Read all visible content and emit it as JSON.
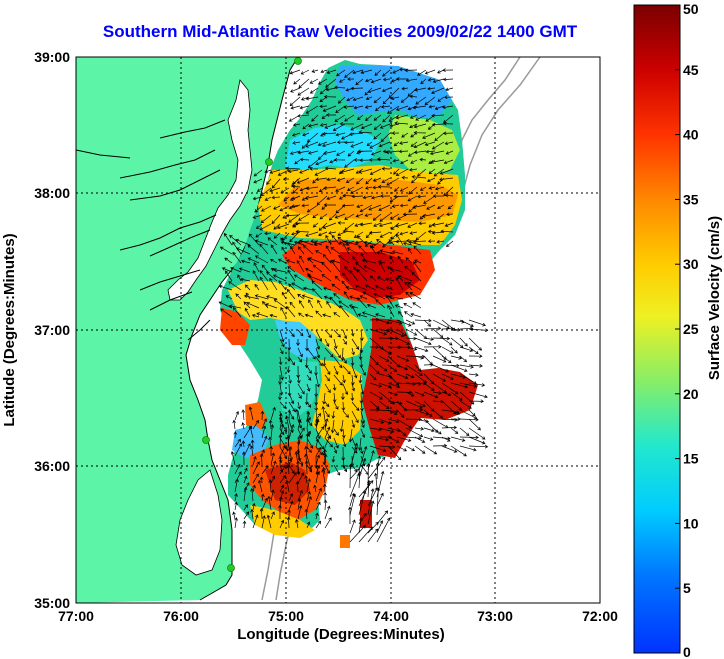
{
  "title": "Southern Mid-Atlantic Raw Velocities 2009/02/22 1400 GMT",
  "xlabel": "Longitude (Degrees:Minutes)",
  "ylabel": "Latitude (Degrees:Minutes)",
  "x_ticks": [
    "77:00",
    "76:00",
    "75:00",
    "74:00",
    "73:00",
    "72:00"
  ],
  "y_ticks": [
    "39:00",
    "38:00",
    "37:00",
    "36:00",
    "35:00"
  ],
  "colorbar": {
    "label": "Surface Velocity (cm/s)",
    "ticks": [
      "0",
      "5",
      "10",
      "15",
      "20",
      "25",
      "30",
      "35",
      "40",
      "45",
      "50"
    ],
    "min": 0,
    "max": 50
  },
  "colors": {
    "land": "#5cf5a8",
    "water": "#ffffff",
    "title": "#0000ff",
    "bathymetry": "#9a9a9a",
    "station": "#22cc22"
  },
  "map_extent": {
    "lon": [
      -77,
      -72
    ],
    "lat": [
      35,
      39
    ]
  }
}
